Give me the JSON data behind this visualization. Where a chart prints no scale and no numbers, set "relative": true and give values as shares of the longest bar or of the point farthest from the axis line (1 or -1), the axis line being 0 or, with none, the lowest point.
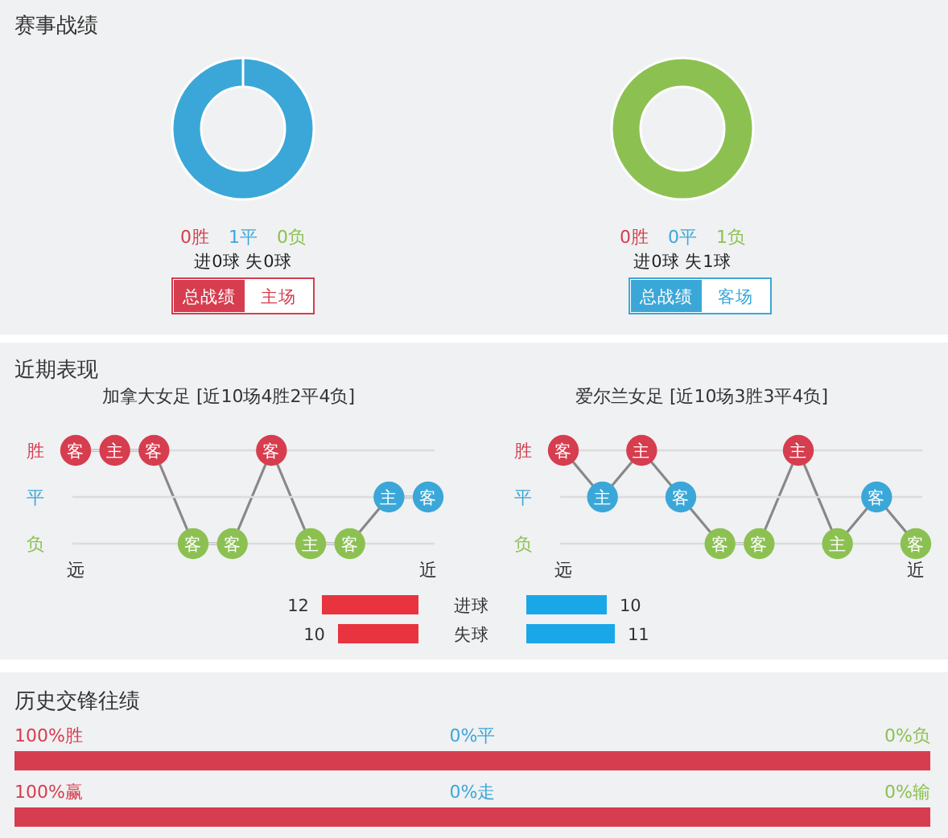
{
  "chart_data": [
    {
      "type": "donut",
      "title": "赛事战绩",
      "categories": [
        "0胜",
        "1平",
        "0负"
      ],
      "values": [
        0,
        1,
        0
      ],
      "colors": [
        "#d63d4e",
        "#3ba7d8",
        "#8cc152"
      ],
      "annotations": [
        "进0球 失0球",
        "总战绩",
        "主场"
      ]
    },
    {
      "type": "donut",
      "categories": [
        "0胜",
        "0平",
        "1负"
      ],
      "values": [
        0,
        0,
        1
      ],
      "colors": [
        "#d63d4e",
        "#3ba7d8",
        "#8cc152"
      ],
      "annotations": [
        "进0球 失1球",
        "总战绩",
        "客场"
      ]
    },
    {
      "type": "line",
      "relative": true,
      "title": "近期表现",
      "subtitle": "加拿大女足 [近10场4胜2平4负]",
      "categories": [
        "远",
        null,
        null,
        null,
        null,
        null,
        null,
        null,
        null,
        "近"
      ],
      "values": [
        1,
        1,
        1,
        0,
        0,
        1,
        0,
        0,
        0.5,
        0.5
      ],
      "colors": [
        "#d63d4e",
        "#d63d4e",
        "#d63d4e",
        "#8cc152",
        "#8cc152",
        "#d63d4e",
        "#8cc152",
        "#8cc152",
        "#3ba7d8",
        "#3ba7d8"
      ],
      "annotations": [
        "客",
        "主",
        "客",
        "客",
        "客",
        "客",
        "主",
        "客",
        "主",
        "客",
        "负"
      ],
      "color": "#888888",
      "marker": "circle",
      "ref_lines": [
        {
          "axis": "y",
          "value": 1,
          "label": "胜",
          "color": "#dcdcdc"
        },
        {
          "axis": "y",
          "value": 0.5,
          "label": "平",
          "color": "#dcdcdc"
        }
      ]
    },
    {
      "type": "line",
      "relative": true,
      "subtitle": "爱尔兰女足 [近10场3胜3平4负]",
      "categories": [
        "远",
        null,
        null,
        null,
        null,
        null,
        null,
        null,
        null,
        "近"
      ],
      "values": [
        1,
        0.5,
        1,
        0.5,
        0,
        0,
        1,
        0,
        0.5,
        0
      ],
      "colors": [
        "#d63d4e",
        "#3ba7d8",
        "#d63d4e",
        "#3ba7d8",
        "#8cc152",
        "#8cc152",
        "#d63d4e",
        "#8cc152",
        "#3ba7d8",
        "#8cc152"
      ],
      "annotations": [
        "客",
        "主",
        "主",
        "客",
        "客",
        "客",
        "主",
        "主",
        "客",
        "客",
        "负"
      ],
      "color": "#888888",
      "marker": "circle",
      "ref_lines": [
        {
          "axis": "y",
          "value": 1,
          "label": "胜",
          "color": "#dcdcdc"
        },
        {
          "axis": "y",
          "value": 0.5,
          "label": "平",
          "color": "#dcdcdc"
        }
      ]
    },
    {
      "type": "bar",
      "orientation": "horizontal",
      "categories": [
        "进球",
        "失球"
      ],
      "values": [
        12,
        10
      ],
      "color": "#e8343f",
      "data_labels": true
    },
    {
      "type": "bar",
      "orientation": "horizontal",
      "categories": [
        null,
        null
      ],
      "values": [
        10,
        11
      ],
      "color": "#1aa7e8",
      "data_labels": true
    },
    {
      "type": "bar",
      "title": "历史交锋往绩",
      "orientation": "horizontal",
      "categories": [
        null,
        null
      ],
      "values": [
        100,
        100
      ],
      "color": "#d63d4e",
      "value_labels": [
        "100%胜",
        "100%赢"
      ],
      "annotations": [
        "0%平",
        "0%负",
        "0%走",
        "0%输"
      ]
    }
  ]
}
